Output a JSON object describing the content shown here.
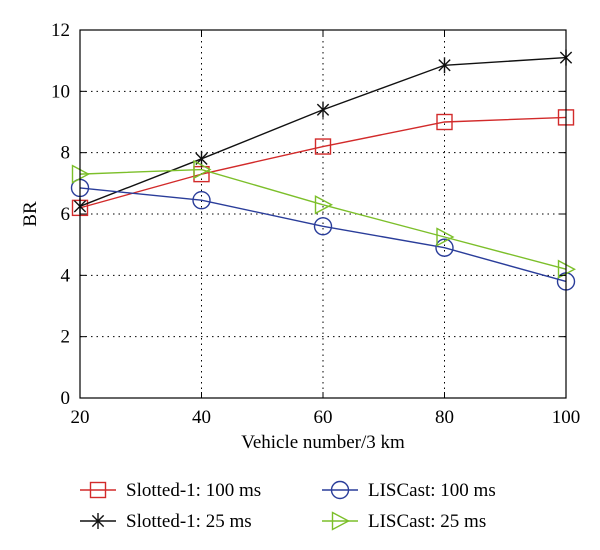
{
  "chart_data": {
    "type": "line",
    "xlabel": "Vehicle number/3 km",
    "ylabel": "BR",
    "xlim": [
      20,
      100
    ],
    "ylim": [
      0,
      12
    ],
    "xticks": [
      20,
      40,
      60,
      80,
      100
    ],
    "yticks": [
      0,
      2,
      4,
      6,
      8,
      10,
      12
    ],
    "grid": "dotted",
    "legend_position": "bottom",
    "x": [
      20,
      40,
      60,
      80,
      100
    ],
    "series": [
      {
        "name": "Slotted-1: 100 ms",
        "values": [
          6.2,
          7.3,
          8.2,
          9.0,
          9.15
        ],
        "color": "#d22a2a",
        "marker": "square"
      },
      {
        "name": "Slotted-1: 25 ms",
        "values": [
          6.25,
          7.8,
          9.4,
          10.85,
          11.1
        ],
        "color": "#111111",
        "marker": "asterisk"
      },
      {
        "name": "LISCast: 100 ms",
        "values": [
          6.85,
          6.45,
          5.6,
          4.9,
          3.8
        ],
        "color": "#2a3d9a",
        "marker": "circle"
      },
      {
        "name": "LISCast: 25 ms",
        "values": [
          7.3,
          7.45,
          6.3,
          5.25,
          4.2
        ],
        "color": "#7cbf2a",
        "marker": "triangle-right"
      }
    ]
  }
}
